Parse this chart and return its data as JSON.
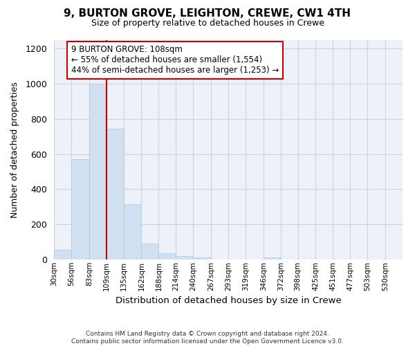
{
  "title": "9, BURTON GROVE, LEIGHTON, CREWE, CW1 4TH",
  "subtitle": "Size of property relative to detached houses in Crewe",
  "xlabel": "Distribution of detached houses by size in Crewe",
  "ylabel": "Number of detached properties",
  "bar_color": "#d0e0f0",
  "bar_edge_color": "#b0c8e0",
  "grid_color": "#c8d4e4",
  "bg_color": "#eef2f8",
  "annotation_text": "9 BURTON GROVE: 108sqm\n← 55% of detached houses are smaller (1,554)\n44% of semi-detached houses are larger (1,253) →",
  "annotation_box_color": "#ffffff",
  "annotation_border_color": "#cc0000",
  "vline_x": 109,
  "vline_color": "#cc0000",
  "footer": "Contains HM Land Registry data © Crown copyright and database right 2024.\nContains public sector information licensed under the Open Government Licence v3.0.",
  "bins": [
    30,
    56,
    83,
    109,
    135,
    162,
    188,
    214,
    240,
    267,
    293,
    319,
    346,
    372,
    398,
    425,
    451,
    477,
    503,
    530,
    556
  ],
  "bar_heights": [
    57,
    570,
    1000,
    745,
    315,
    90,
    37,
    20,
    11,
    0,
    0,
    0,
    10,
    0,
    0,
    0,
    0,
    0,
    0,
    0
  ],
  "ylim": [
    0,
    1250
  ],
  "yticks": [
    0,
    200,
    400,
    600,
    800,
    1000,
    1200
  ]
}
